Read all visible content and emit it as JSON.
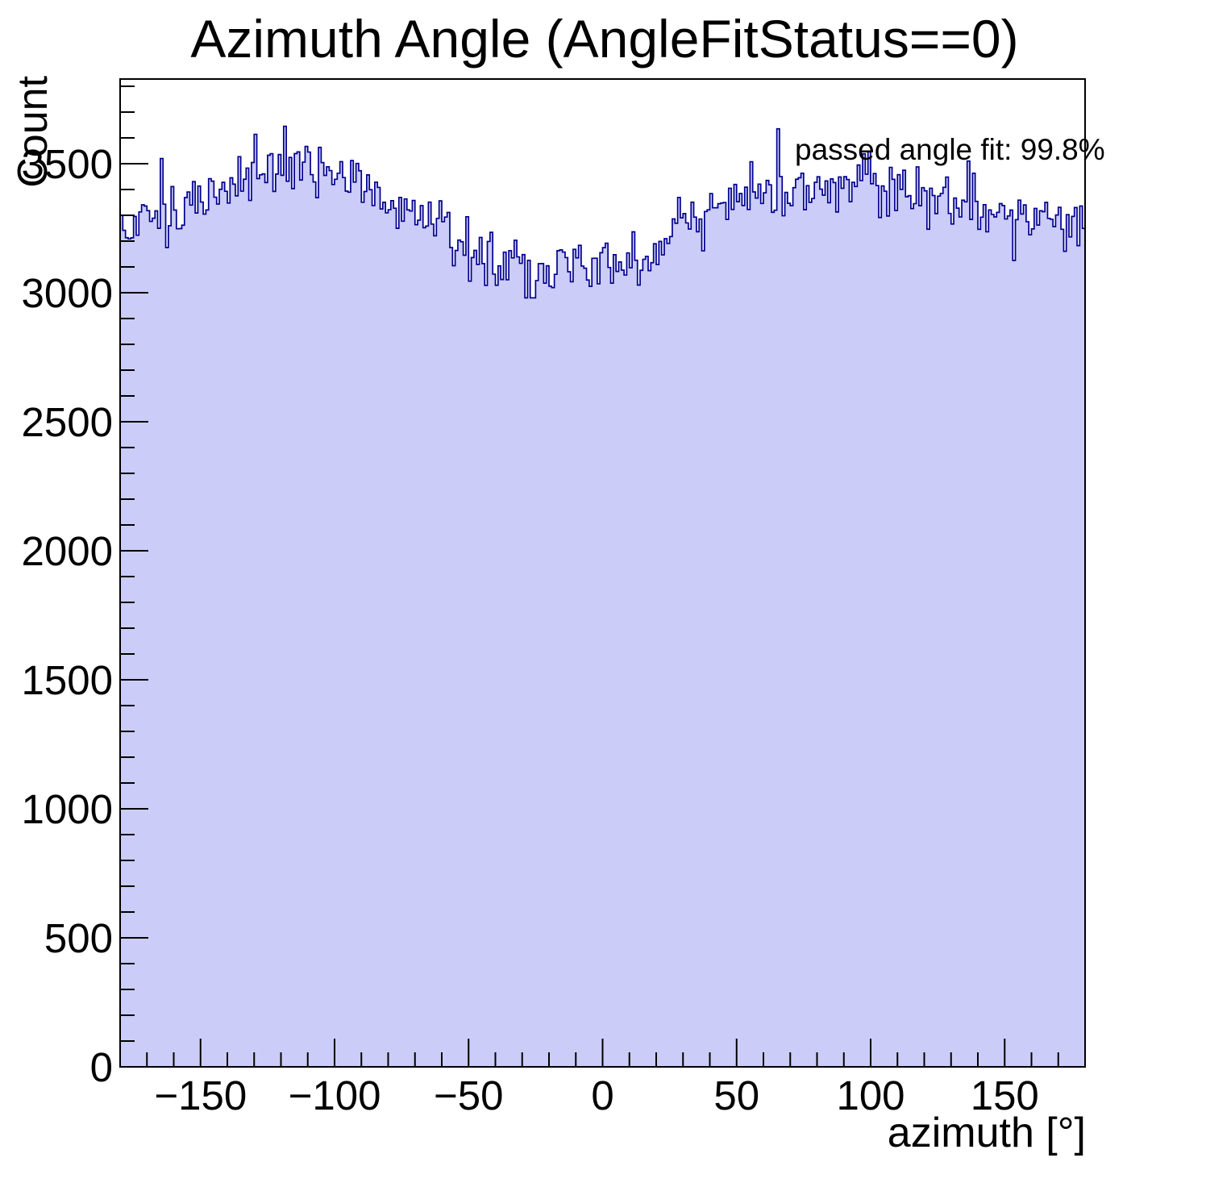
{
  "chart_data": {
    "type": "bar",
    "subtype": "histogram-step-filled",
    "title": "Azimuth Angle (AngleFitStatus==0)",
    "xlabel": "azimuth [°]",
    "ylabel": "Count",
    "annotation": "passed angle fit: 99.8%",
    "x_range_deg": [
      -180,
      180
    ],
    "bin_width_deg": 1,
    "n_bins": 360,
    "y_range": [
      0,
      3828
    ],
    "x_major_ticks": [
      -150,
      -100,
      -50,
      0,
      50,
      100,
      150
    ],
    "x_minor_tick_step_deg": 10,
    "y_major_ticks": [
      0,
      500,
      1000,
      1500,
      2000,
      2500,
      3000,
      3500
    ],
    "y_minor_tick_step": 100,
    "grid": false,
    "legend": null,
    "envelope_deg": [
      -180,
      -170,
      -160,
      -150,
      -140,
      -130,
      -120,
      -110,
      -100,
      -90,
      -80,
      -70,
      -60,
      -50,
      -40,
      -30,
      -20,
      -10,
      0,
      10,
      20,
      30,
      40,
      50,
      60,
      70,
      80,
      90,
      100,
      110,
      120,
      130,
      140,
      150,
      160,
      170,
      180
    ],
    "envelope_counts": [
      3260,
      3290,
      3320,
      3360,
      3415,
      3475,
      3505,
      3495,
      3450,
      3405,
      3360,
      3305,
      3250,
      3195,
      3140,
      3100,
      3080,
      3085,
      3100,
      3125,
      3175,
      3235,
      3290,
      3340,
      3385,
      3415,
      3425,
      3420,
      3410,
      3395,
      3375,
      3350,
      3330,
      3310,
      3290,
      3275,
      3265
    ],
    "bin_value_range": [
      3020,
      3645
    ],
    "noise": {
      "model": "poisson_sqrt_gaussian",
      "seed": 1337,
      "clip_sigma": 3
    },
    "notable_bins": [
      {
        "x_deg": -119,
        "count": 3645
      },
      {
        "x_deg": -165,
        "count": 3520
      },
      {
        "x_deg": 65,
        "count": 3635
      },
      {
        "x_deg": -20,
        "count": 3025
      },
      {
        "x_deg": 153,
        "count": 3125
      }
    ],
    "colors": {
      "hist_fill": "#ccccf8",
      "hist_line": "#00008f",
      "axis": "#000000",
      "text": "#000000",
      "background": "#ffffff"
    }
  }
}
